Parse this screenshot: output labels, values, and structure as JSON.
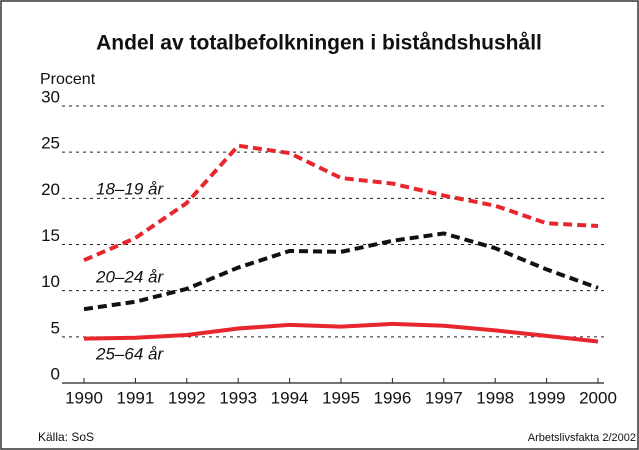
{
  "chart_data": {
    "type": "line",
    "title": "Andel av totalbefolkningen i biståndshushåll",
    "y_label": "Procent",
    "source": "Källa: SoS",
    "credit": "Arbetslivsfakta 2/2002",
    "x": [
      1990,
      1991,
      1992,
      1993,
      1994,
      1995,
      1996,
      1997,
      1998,
      1999,
      2000
    ],
    "xlim": [
      1990,
      2000
    ],
    "xticks": [
      1990,
      1991,
      1992,
      1993,
      1994,
      1995,
      1996,
      1997,
      1998,
      1999,
      2000
    ],
    "ylim": [
      0,
      30
    ],
    "yticks": [
      0,
      5,
      10,
      15,
      20,
      25,
      30
    ],
    "grid": true,
    "series": [
      {
        "name": "18–19 år",
        "color": "#e8262e",
        "dashed": true,
        "values": [
          13.3,
          15.7,
          19.5,
          25.7,
          24.9,
          22.2,
          21.6,
          20.3,
          19.2,
          17.3,
          17.0
        ]
      },
      {
        "name": "20–24 år",
        "color": "#111111",
        "dashed": true,
        "values": [
          8.0,
          8.8,
          10.2,
          12.5,
          14.3,
          14.2,
          15.4,
          16.2,
          14.6,
          12.3,
          10.3
        ]
      },
      {
        "name": "25–64 år",
        "color": "#e8262e",
        "dashed": false,
        "values": [
          4.8,
          4.9,
          5.2,
          5.9,
          6.3,
          6.1,
          6.4,
          6.2,
          5.7,
          5.1,
          4.5
        ]
      }
    ]
  }
}
